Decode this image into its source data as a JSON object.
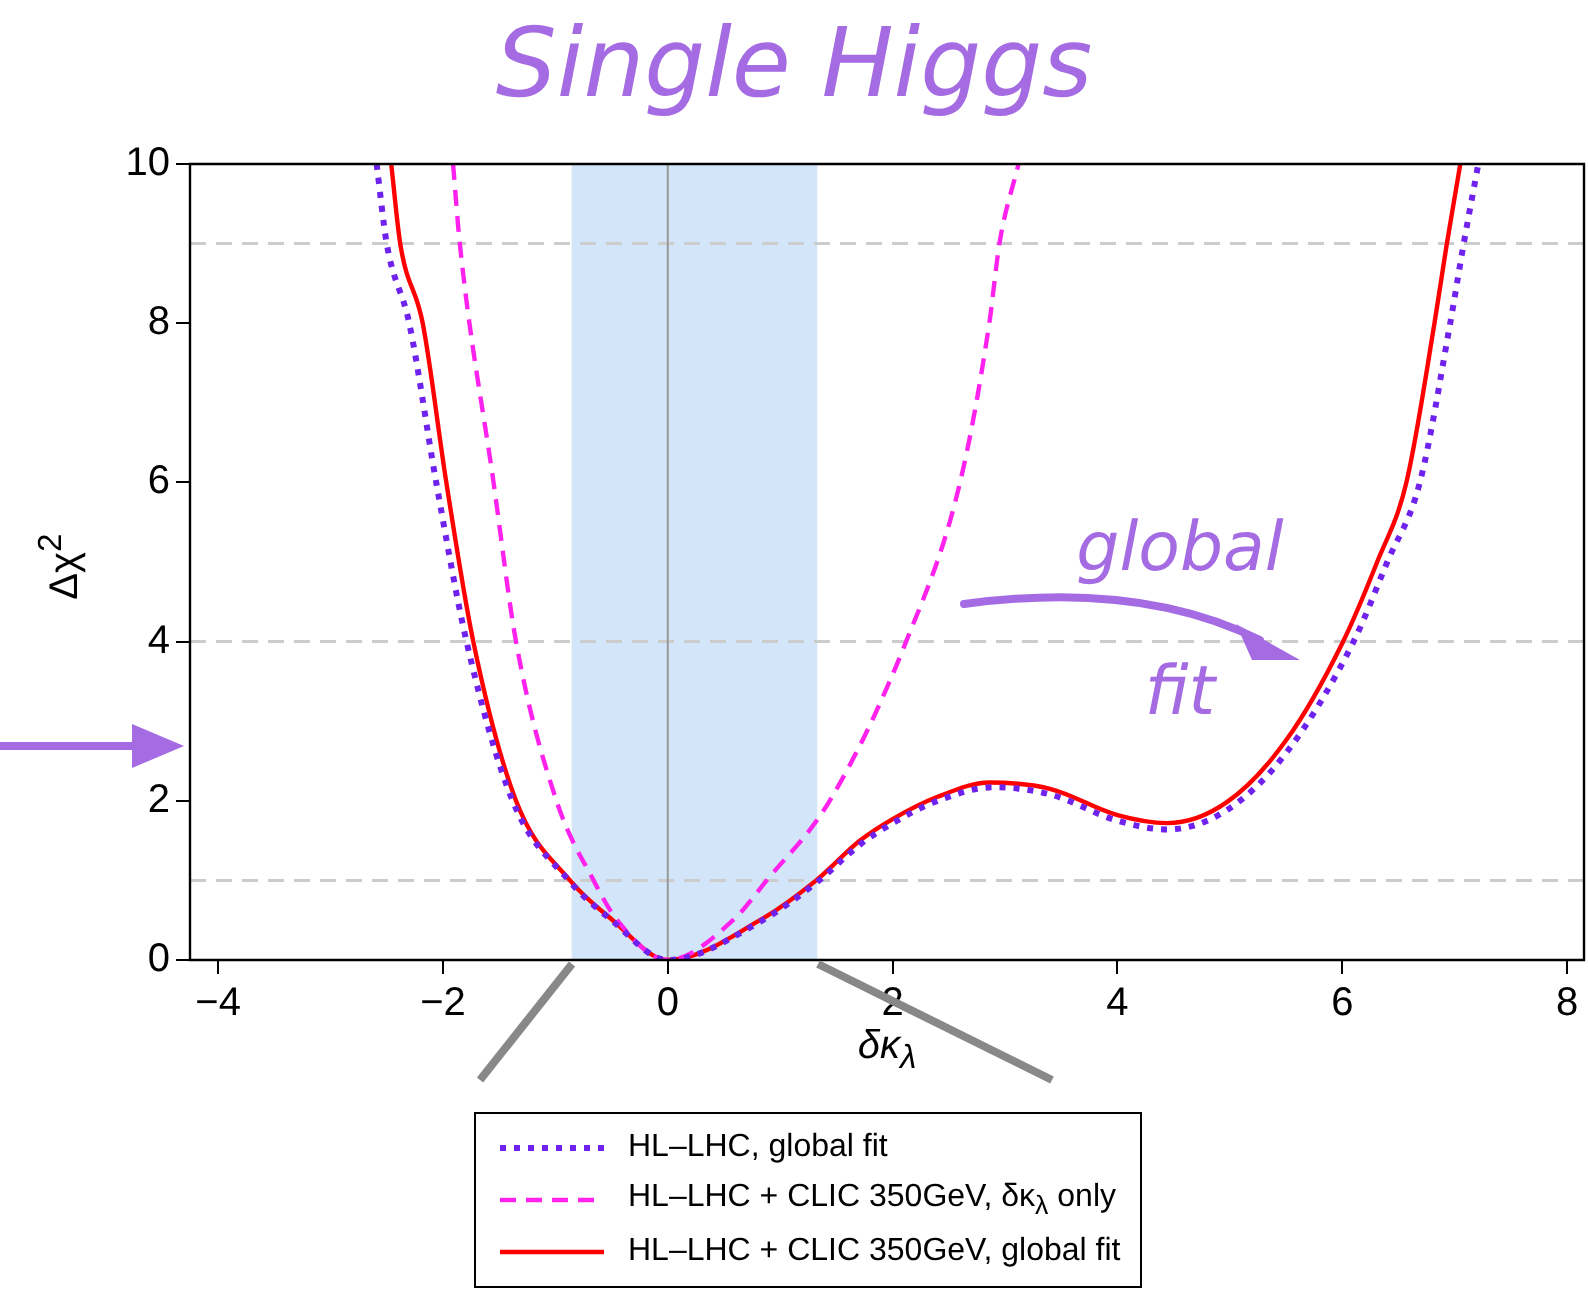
{
  "chart_data": {
    "type": "line",
    "title": "Single Higgs",
    "xlabel": "δκ$_{λ}$",
    "ylabel": "Δχ$^{2}$",
    "annotations": [
      "global fit"
    ],
    "xlim": [
      -4.25,
      8.15
    ],
    "xticks": [
      -4,
      -2,
      0,
      2,
      4,
      6,
      8
    ],
    "ylim": [
      0,
      10
    ],
    "yticks": [
      0,
      2,
      4,
      6,
      8,
      10
    ],
    "grid": false,
    "legend": "bottom",
    "marker": "none",
    "bands": [
      {
        "axis": "x",
        "from": -0.855,
        "to": 1.33,
        "color": "#d3e6f9"
      }
    ],
    "ref_lines": [
      {
        "axis": "y",
        "value": 1,
        "color": "#cccccc",
        "line_style": "dashed"
      },
      {
        "axis": "y",
        "value": 4,
        "color": "#cccccc",
        "line_style": "dashed"
      },
      {
        "axis": "y",
        "value": 9,
        "color": "#cccccc",
        "line_style": "dashed"
      },
      {
        "axis": "x",
        "value": 0,
        "color": "#999999",
        "line_style": "solid"
      }
    ],
    "series": [
      {
        "name": "HL–LHC, global fit",
        "color": "#6f22ee",
        "line_style": "dotted",
        "x": [
          -2.59,
          -2.5,
          -2.3,
          -2.06,
          -1.79,
          -1.38,
          -0.88,
          -0.5,
          0,
          0.82,
          1.32,
          1.71,
          2.0,
          2.4,
          2.9,
          3.4,
          4.0,
          4.44,
          4.97,
          5.5,
          6.1,
          6.4,
          6.69,
          6.96,
          7.08,
          7.21
        ],
        "values": [
          10,
          9,
          8,
          6,
          4,
          2,
          1,
          0.5,
          0,
          0.48,
          0.97,
          1.45,
          1.72,
          2.0,
          2.17,
          2.08,
          1.75,
          1.64,
          1.88,
          2.6,
          4,
          5,
          6,
          8,
          9,
          10
        ]
      },
      {
        "name": "HL–LHC + CLIC 350GeV, δκ$_{λ}$ only",
        "color": "#ff22ee",
        "line_style": "dashed",
        "x": [
          -1.91,
          -1.85,
          -1.55,
          -1.35,
          -0.99,
          -0.66,
          -0.45,
          0,
          0.58,
          0.88,
          1.44,
          2.12,
          2.6,
          2.86,
          2.95,
          3.12
        ],
        "values": [
          10,
          9,
          6,
          4,
          2,
          1,
          0.5,
          0,
          0.5,
          1,
          2,
          4,
          6,
          8,
          9,
          10
        ]
      },
      {
        "name": "HL–LHC + CLIC 350GeV, global fit",
        "color": "#ff0000",
        "line_style": "solid",
        "x": [
          -2.46,
          -2.38,
          -2.18,
          -1.97,
          -1.73,
          -1.35,
          -0.87,
          -0.49,
          0,
          0.82,
          1.32,
          1.71,
          2.0,
          2.4,
          2.86,
          3.4,
          4.0,
          4.44,
          4.97,
          5.5,
          6.0,
          6.31,
          6.57,
          6.82,
          6.93,
          7.05
        ],
        "values": [
          10,
          9,
          8,
          6,
          4,
          2,
          1,
          0.5,
          0,
          0.5,
          1,
          1.5,
          1.77,
          2.05,
          2.23,
          2.15,
          1.82,
          1.72,
          1.98,
          2.76,
          3.98,
          5,
          6,
          8,
          9,
          10
        ]
      }
    ]
  }
}
